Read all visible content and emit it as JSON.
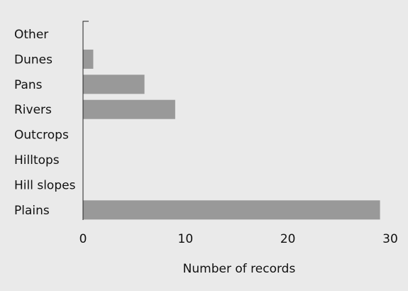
{
  "chart_data": {
    "type": "bar",
    "orientation": "horizontal",
    "categories": [
      "Other",
      "Dunes",
      "Pans",
      "Rivers",
      "Outcrops",
      "Hilltops",
      "Hill slopes",
      "Plains"
    ],
    "values": [
      0,
      1,
      6,
      9,
      0,
      0,
      0,
      29
    ],
    "xlabel": "Number of records",
    "ylabel": "",
    "xlim": [
      0,
      30
    ],
    "xticks": [
      0,
      10,
      20,
      30
    ],
    "grid": false,
    "bar_color": "#999999",
    "background_color": "#eaeaea"
  }
}
